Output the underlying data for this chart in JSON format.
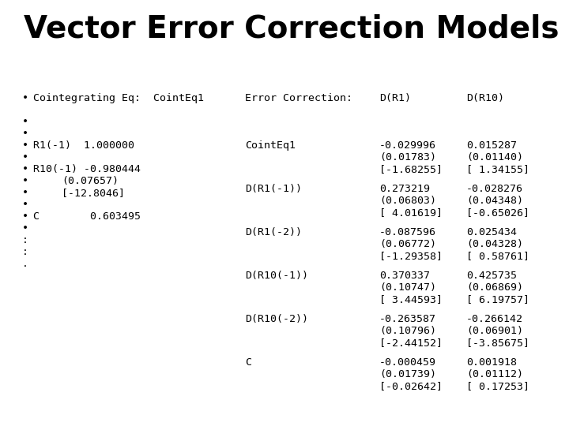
{
  "title": "Vector Error Correction Models",
  "title_fontsize": 28,
  "title_fontweight": "bold",
  "title_font": "DejaVu Sans",
  "bg_color": "#ffffff",
  "mono_font": "DejaVu Sans Mono",
  "content_fontsize": 9.5,
  "left_col_header": "Cointegrating Eq:  CointEq1",
  "left_rows": [
    {
      "label": "R1(-1)  1.000000",
      "subs": []
    },
    {
      "label": "R10(-1) -0.980444",
      "subs": [
        "(0.07657)",
        "[-12.8046]"
      ]
    },
    {
      "label": "C        0.603495",
      "subs": []
    }
  ],
  "right_header": [
    "Error Correction:",
    "D(R1)",
    "D(R10)"
  ],
  "right_rows": [
    {
      "label": "CointEq1",
      "d_r1": [
        "-0.029996",
        "(0.01783)",
        "[-1.68255]"
      ],
      "d_r10": [
        "0.015287",
        "(0.01140)",
        "[ 1.34155]"
      ]
    },
    {
      "label": "D(R1(-1))",
      "d_r1": [
        "0.273219",
        "(0.06803)",
        "[ 4.01619]"
      ],
      "d_r10": [
        "-0.028276",
        "(0.04348)",
        "[-0.65026]"
      ]
    },
    {
      "label": "D(R1(-2))",
      "d_r1": [
        "-0.087596",
        "(0.06772)",
        "[-1.29358]"
      ],
      "d_r10": [
        "0.025434",
        "(0.04328)",
        "[ 0.58761]"
      ]
    },
    {
      "label": "D(R10(-1))",
      "d_r1": [
        "0.370337",
        "(0.10747)",
        "[ 3.44593]"
      ],
      "d_r10": [
        "0.425735",
        "(0.06869)",
        "[ 6.19757]"
      ]
    },
    {
      "label": "D(R10(-2))",
      "d_r1": [
        "-0.263587",
        "(0.10796)",
        "[-2.44152]"
      ],
      "d_r10": [
        "-0.266142",
        "(0.06901)",
        "[-3.85675]"
      ]
    },
    {
      "label": "C",
      "d_r1": [
        "-0.000459",
        "(0.01739)",
        "[-0.02642]"
      ],
      "d_r10": [
        "0.001918",
        "(0.01112)",
        "[ 0.17253]"
      ]
    }
  ],
  "bullet": "•"
}
